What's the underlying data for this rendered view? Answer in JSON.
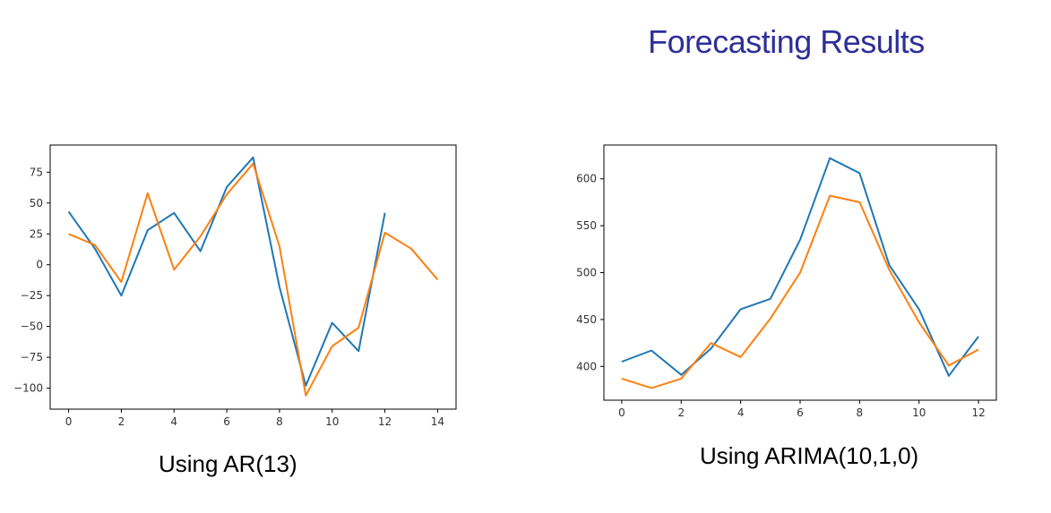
{
  "title": "Forecasting Results",
  "colors": {
    "title": "#2e2e9a",
    "series1": "#1f77b4",
    "series2": "#ff7f0e"
  },
  "chart_data": [
    {
      "type": "line",
      "caption": "Using AR(13)",
      "xlim": [
        -0.7,
        14.7
      ],
      "ylim": [
        -117,
        97
      ],
      "xticks": [
        0,
        2,
        4,
        6,
        8,
        10,
        12,
        14
      ],
      "xtick_labels": [
        "0",
        "2",
        "4",
        "6",
        "8",
        "10",
        "12",
        "14"
      ],
      "yticks": [
        75,
        50,
        25,
        0,
        -25,
        -50,
        -75,
        -100
      ],
      "ytick_labels": [
        "75",
        "50",
        "25",
        "0",
        "−25",
        "−50",
        "−75",
        "−100"
      ],
      "series": [
        {
          "color": "#1f77b4",
          "x": [
            0,
            1,
            2,
            3,
            4,
            5,
            6,
            7,
            8,
            9,
            10,
            11,
            12
          ],
          "y": [
            43,
            13,
            -25,
            28,
            42,
            11,
            63,
            87,
            -18,
            -98,
            -47,
            -70,
            42
          ]
        },
        {
          "color": "#ff7f0e",
          "x": [
            0,
            1,
            2,
            3,
            4,
            5,
            6,
            7,
            8,
            9,
            10,
            11,
            12,
            13,
            14
          ],
          "y": [
            25,
            16,
            -14,
            58,
            -4,
            23,
            57,
            82,
            15,
            -106,
            -66,
            -51,
            26,
            13,
            -12
          ]
        }
      ]
    },
    {
      "type": "line",
      "caption": "Using ARIMA(10,1,0)",
      "xlim": [
        -0.6,
        12.6
      ],
      "ylim": [
        364,
        636
      ],
      "xticks": [
        0,
        2,
        4,
        6,
        8,
        10,
        12
      ],
      "xtick_labels": [
        "0",
        "2",
        "4",
        "6",
        "8",
        "10",
        "12"
      ],
      "yticks": [
        600,
        550,
        500,
        450,
        400
      ],
      "ytick_labels": [
        "600",
        "550",
        "500",
        "450",
        "400"
      ],
      "series": [
        {
          "color": "#1f77b4",
          "x": [
            0,
            1,
            2,
            3,
            4,
            5,
            6,
            7,
            8,
            9,
            10,
            11,
            12
          ],
          "y": [
            405,
            417,
            391,
            419,
            461,
            472,
            535,
            622,
            606,
            508,
            461,
            390,
            432
          ]
        },
        {
          "color": "#ff7f0e",
          "x": [
            0,
            1,
            2,
            3,
            4,
            5,
            6,
            7,
            8,
            9,
            10,
            11,
            12
          ],
          "y": [
            387,
            377,
            387,
            425,
            410,
            451,
            500,
            582,
            575,
            503,
            447,
            401,
            418
          ]
        }
      ]
    }
  ]
}
